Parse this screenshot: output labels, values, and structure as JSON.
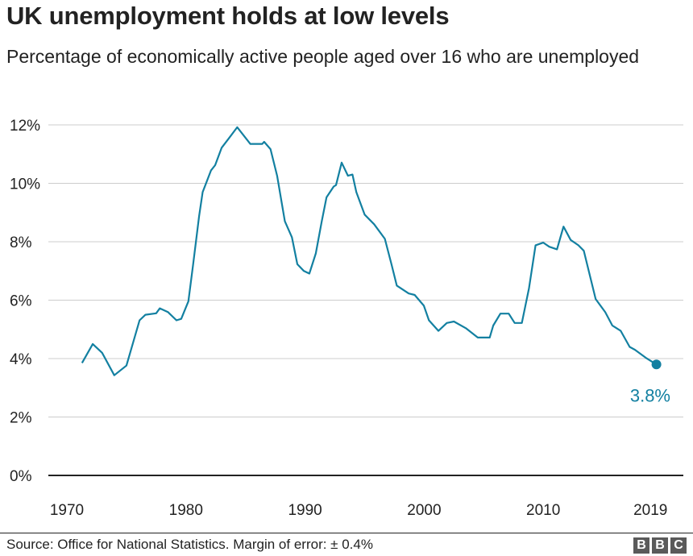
{
  "chart_data": {
    "type": "line",
    "title": "UK unemployment holds at low levels",
    "subtitle": "Percentage of economically active people aged over 16 who are unemployed",
    "xlabel": "",
    "ylabel": "",
    "xlim": [
      1970,
      2019.5
    ],
    "ylim": [
      0,
      12
    ],
    "grid": true,
    "line_color": "#1380a1",
    "x_ticks": [
      "1970",
      "1980",
      "1990",
      "2000",
      "2010",
      "2019"
    ],
    "y_ticks": [
      "0%",
      "2%",
      "4%",
      "6%",
      "8%",
      "10%",
      "12%"
    ],
    "series": [
      {
        "x": [
          1971.27,
          1972.17,
          1972.96,
          1973.98,
          1975.0,
          1976.1,
          1976.6,
          1977.5,
          1977.8,
          1978.5,
          1979.2,
          1979.6,
          1980.2,
          1980.6,
          1981.1,
          1981.4,
          1982.1,
          1982.45,
          1983.0,
          1983.6,
          1984.3,
          1985.4,
          1986.4,
          1986.56,
          1987.1,
          1987.65,
          1988.3,
          1988.9,
          1989.35,
          1989.9,
          1990.36,
          1990.9,
          1991.4,
          1991.8,
          1992.4,
          1992.6,
          1993.07,
          1993.6,
          1993.98,
          1994.3,
          1995.0,
          1995.8,
          1996.7,
          1997.25,
          1997.7,
          1998.7,
          1999.2,
          1999.97,
          2000.4,
          2001.2,
          2001.9,
          2002.5,
          2003.5,
          2004.5,
          2005.5,
          2005.8,
          2006.4,
          2007.1,
          2007.6,
          2008.2,
          2008.8,
          2009.35,
          2010.0,
          2010.5,
          2011.15,
          2011.7,
          2012.3,
          2012.95,
          2013.4,
          2013.9,
          2014.4,
          2015.2,
          2015.8,
          2016.5,
          2017.25,
          2017.7,
          2018.6,
          2019.5
        ],
        "values": [
          3.85,
          4.5,
          4.2,
          3.43,
          3.76,
          5.31,
          5.5,
          5.55,
          5.72,
          5.59,
          5.31,
          5.36,
          5.96,
          7.23,
          8.88,
          9.7,
          10.44,
          10.62,
          11.22,
          11.54,
          11.92,
          11.35,
          11.35,
          11.42,
          11.17,
          10.26,
          8.7,
          8.15,
          7.23,
          7.0,
          6.91,
          7.6,
          8.7,
          9.52,
          9.89,
          9.94,
          10.71,
          10.26,
          10.3,
          9.7,
          8.93,
          8.6,
          8.1,
          7.23,
          6.5,
          6.23,
          6.18,
          5.81,
          5.31,
          4.95,
          5.22,
          5.27,
          5.04,
          4.72,
          4.72,
          5.13,
          5.54,
          5.54,
          5.22,
          5.22,
          6.41,
          7.88,
          7.97,
          7.83,
          7.74,
          8.52,
          8.06,
          7.88,
          7.69,
          6.87,
          6.04,
          5.59,
          5.13,
          4.95,
          4.4,
          4.3,
          4.03,
          3.8
        ]
      }
    ],
    "annotations": [
      {
        "label": "3.8%"
      }
    ]
  },
  "footer": {
    "source": "Source: Office for National Statistics. Margin of error: ± 0.4%",
    "logo": [
      "B",
      "B",
      "C"
    ]
  }
}
